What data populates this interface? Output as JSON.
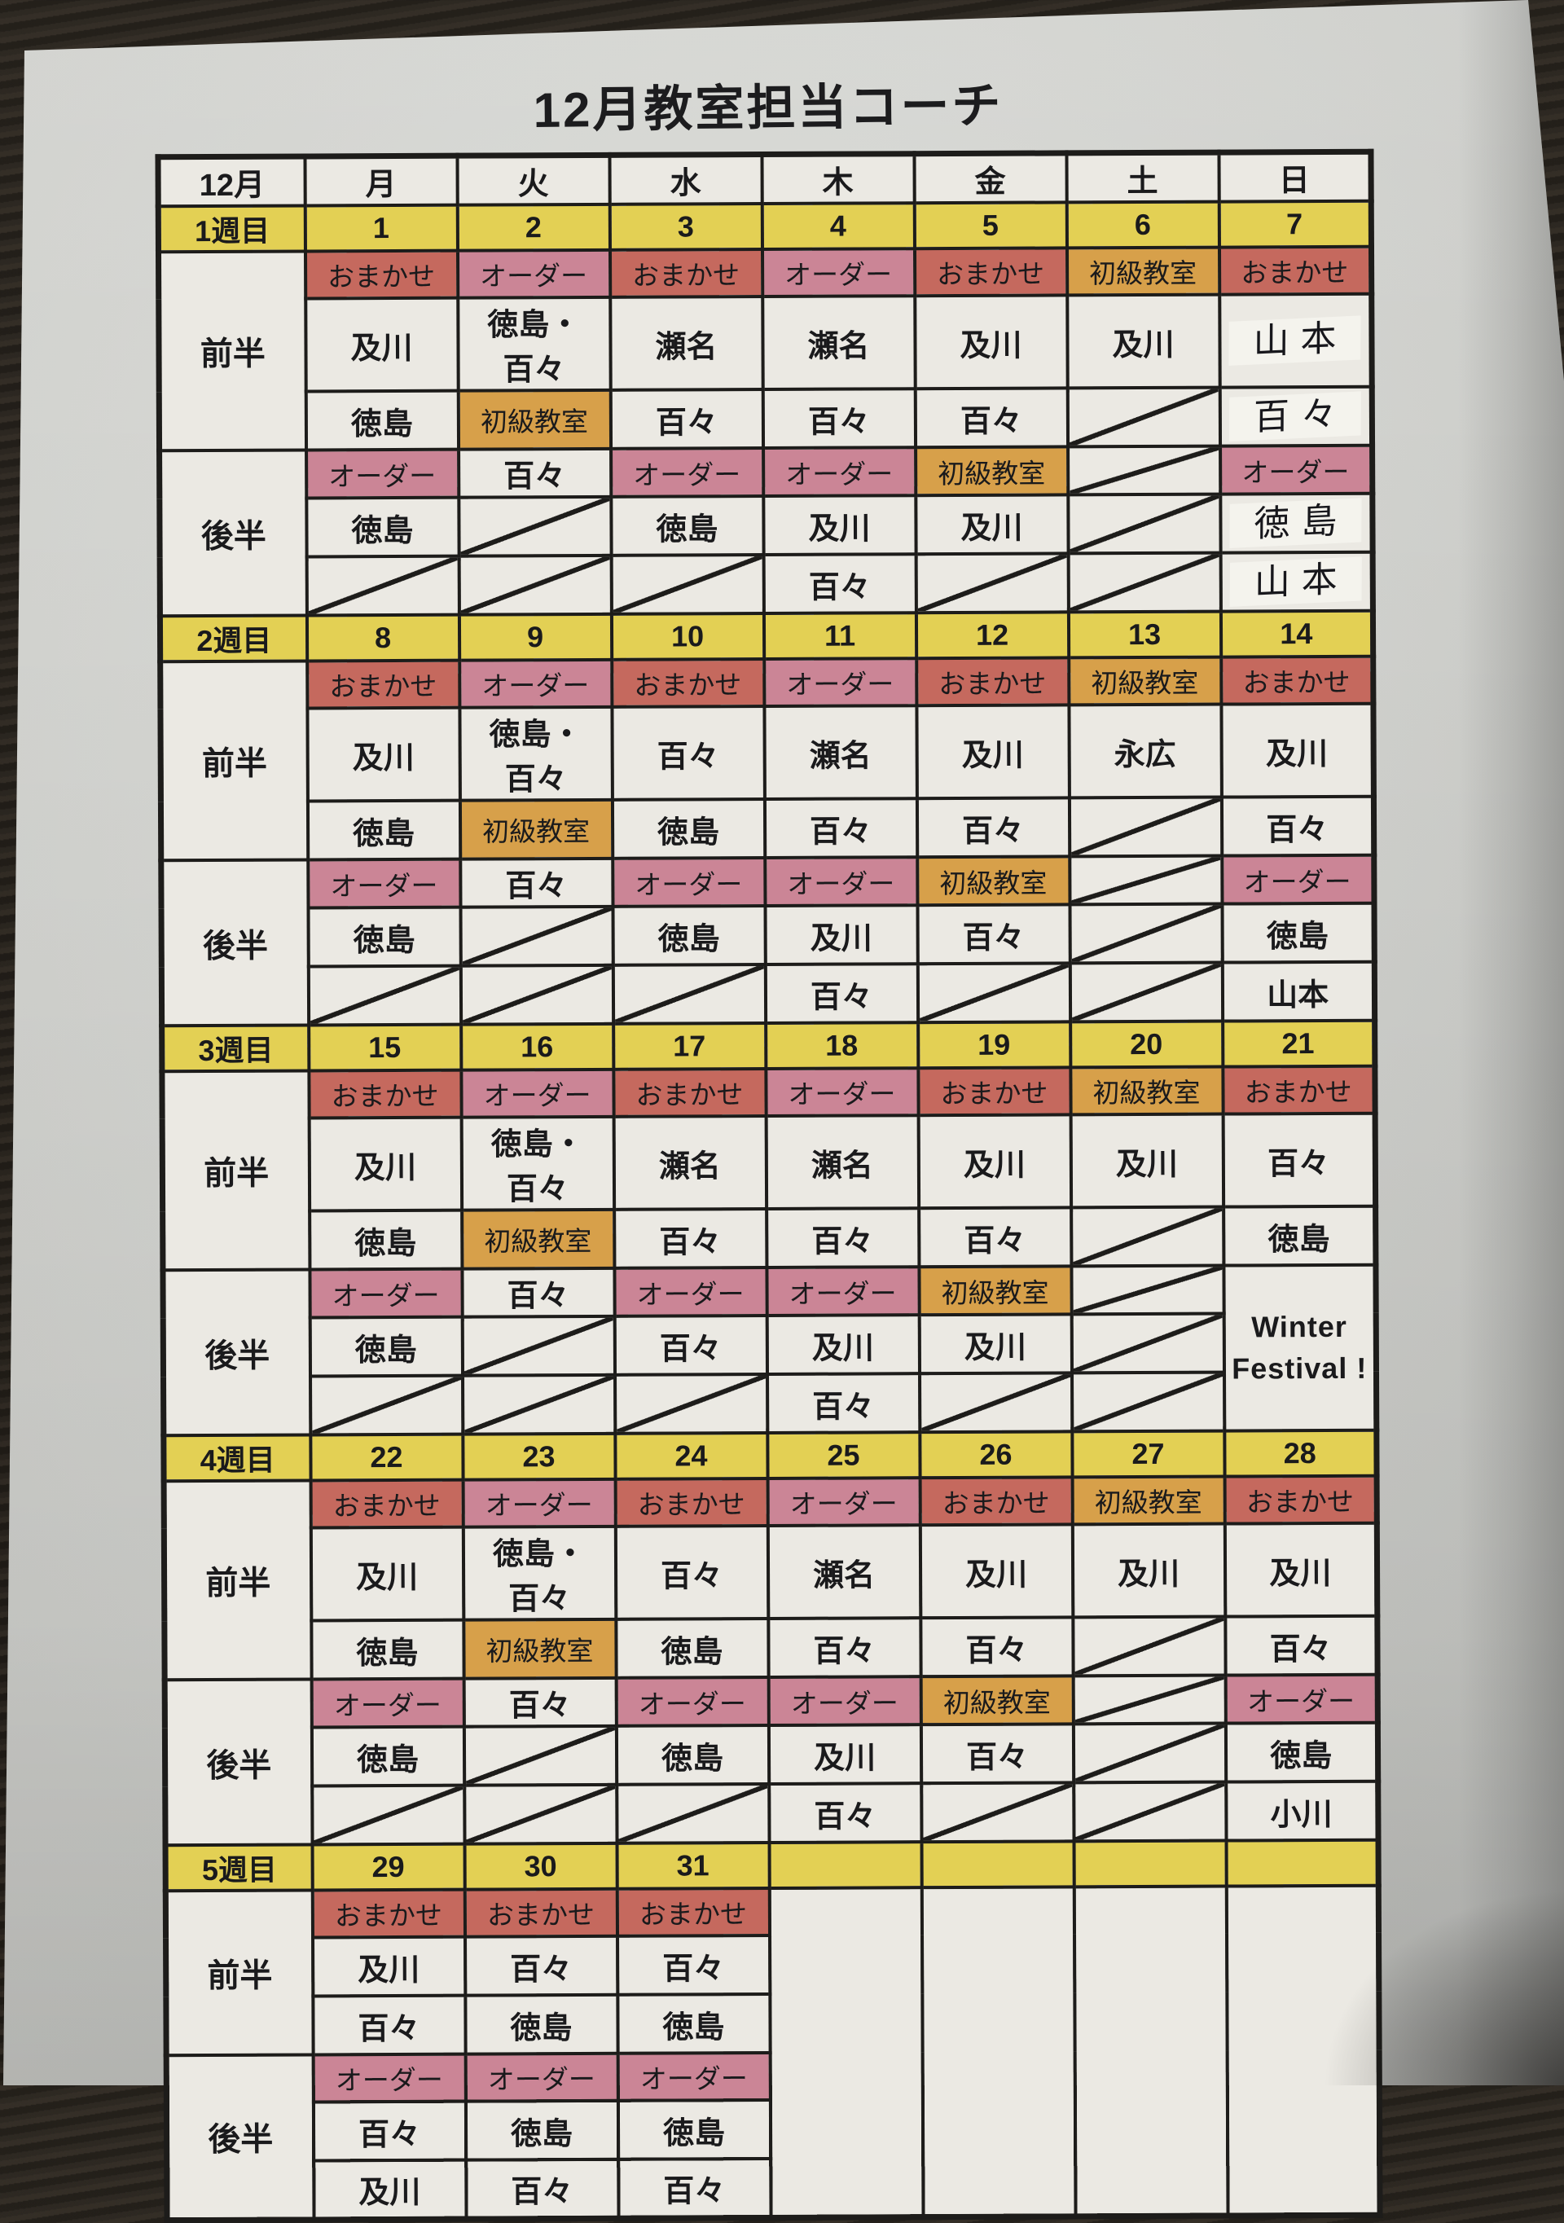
{
  "page": {
    "title": "12月教室担当コーチ"
  },
  "colors": {
    "omakase_bg": "#c5695e",
    "order_bg": "#cb8596",
    "beginner_bg": "#d7a04a",
    "week_row_bg": "#e3d054",
    "cell_bg": "#ebe9e3",
    "grid_border": "#1d1c1a",
    "winter_text": "#c04a42",
    "paper": "#d9dad6"
  },
  "table": {
    "month_label": "12月",
    "day_headers": [
      "月",
      "火",
      "水",
      "木",
      "金",
      "土",
      "日"
    ],
    "half_labels": {
      "first": "前半",
      "second": "後半"
    },
    "weeks": [
      {
        "label": "1週目",
        "dates": [
          "1",
          "2",
          "3",
          "4",
          "5",
          "6",
          "7"
        ],
        "first": {
          "slots": [
            {
              "t": "おまかせ",
              "y": "omakase"
            },
            {
              "t": "オーダー",
              "y": "order"
            },
            {
              "t": "おまかせ",
              "y": "omakase"
            },
            {
              "t": "オーダー",
              "y": "order"
            },
            {
              "t": "おまかせ",
              "y": "omakase"
            },
            {
              "t": "初級教室",
              "y": "beginner"
            },
            {
              "t": "おまかせ",
              "y": "omakase"
            }
          ],
          "rows": [
            [
              {
                "t": "及川",
                "y": "plain"
              },
              {
                "t": "徳島・百々",
                "y": "plain"
              },
              {
                "t": "瀬名",
                "y": "plain"
              },
              {
                "t": "瀬名",
                "y": "plain"
              },
              {
                "t": "及川",
                "y": "plain"
              },
              {
                "t": "及川",
                "y": "plain"
              },
              {
                "t": "山本",
                "y": "hand"
              }
            ],
            [
              {
                "t": "徳島",
                "y": "plain"
              },
              {
                "t": "初級教室",
                "y": "beginner"
              },
              {
                "t": "百々",
                "y": "plain"
              },
              {
                "t": "百々",
                "y": "plain"
              },
              {
                "t": "百々",
                "y": "plain"
              },
              {
                "y": "slash"
              },
              {
                "t": "百々",
                "y": "hand"
              }
            ]
          ]
        },
        "second": {
          "slots": [
            {
              "t": "オーダー",
              "y": "order"
            },
            {
              "t": "百々",
              "y": "plain"
            },
            {
              "t": "オーダー",
              "y": "order"
            },
            {
              "t": "オーダー",
              "y": "order"
            },
            {
              "t": "初級教室",
              "y": "beginner"
            },
            {
              "y": "slash"
            },
            {
              "t": "オーダー",
              "y": "order"
            }
          ],
          "rows": [
            [
              {
                "t": "徳島",
                "y": "plain"
              },
              {
                "y": "slash"
              },
              {
                "t": "徳島",
                "y": "plain"
              },
              {
                "t": "及川",
                "y": "plain"
              },
              {
                "t": "及川",
                "y": "plain"
              },
              {
                "y": "slash"
              },
              {
                "t": "徳島",
                "y": "hand"
              }
            ],
            [
              {
                "y": "slash"
              },
              {
                "y": "slash"
              },
              {
                "y": "slash"
              },
              {
                "t": "百々",
                "y": "plain"
              },
              {
                "y": "slash"
              },
              {
                "y": "slash"
              },
              {
                "t": "山本",
                "y": "hand"
              }
            ]
          ]
        }
      },
      {
        "label": "2週目",
        "dates": [
          "8",
          "9",
          "10",
          "11",
          "12",
          "13",
          "14"
        ],
        "first": {
          "slots": [
            {
              "t": "おまかせ",
              "y": "omakase"
            },
            {
              "t": "オーダー",
              "y": "order"
            },
            {
              "t": "おまかせ",
              "y": "omakase"
            },
            {
              "t": "オーダー",
              "y": "order"
            },
            {
              "t": "おまかせ",
              "y": "omakase"
            },
            {
              "t": "初級教室",
              "y": "beginner"
            },
            {
              "t": "おまかせ",
              "y": "omakase"
            }
          ],
          "rows": [
            [
              {
                "t": "及川",
                "y": "plain"
              },
              {
                "t": "徳島・百々",
                "y": "plain"
              },
              {
                "t": "百々",
                "y": "plain"
              },
              {
                "t": "瀬名",
                "y": "plain"
              },
              {
                "t": "及川",
                "y": "plain"
              },
              {
                "t": "永広",
                "y": "plain"
              },
              {
                "t": "及川",
                "y": "plain"
              }
            ],
            [
              {
                "t": "徳島",
                "y": "plain"
              },
              {
                "t": "初級教室",
                "y": "beginner"
              },
              {
                "t": "徳島",
                "y": "plain"
              },
              {
                "t": "百々",
                "y": "plain"
              },
              {
                "t": "百々",
                "y": "plain"
              },
              {
                "y": "slash"
              },
              {
                "t": "百々",
                "y": "plain"
              }
            ]
          ]
        },
        "second": {
          "slots": [
            {
              "t": "オーダー",
              "y": "order"
            },
            {
              "t": "百々",
              "y": "plain"
            },
            {
              "t": "オーダー",
              "y": "order"
            },
            {
              "t": "オーダー",
              "y": "order"
            },
            {
              "t": "初級教室",
              "y": "beginner"
            },
            {
              "y": "slash"
            },
            {
              "t": "オーダー",
              "y": "order"
            }
          ],
          "rows": [
            [
              {
                "t": "徳島",
                "y": "plain"
              },
              {
                "y": "slash"
              },
              {
                "t": "徳島",
                "y": "plain"
              },
              {
                "t": "及川",
                "y": "plain"
              },
              {
                "t": "百々",
                "y": "plain"
              },
              {
                "y": "slash"
              },
              {
                "t": "徳島",
                "y": "plain"
              }
            ],
            [
              {
                "y": "slash"
              },
              {
                "y": "slash"
              },
              {
                "y": "slash"
              },
              {
                "t": "百々",
                "y": "plain"
              },
              {
                "y": "slash"
              },
              {
                "y": "slash"
              },
              {
                "t": "山本",
                "y": "plain"
              }
            ]
          ]
        }
      },
      {
        "label": "3週目",
        "dates": [
          "15",
          "16",
          "17",
          "18",
          "19",
          "20",
          "21"
        ],
        "first": {
          "slots": [
            {
              "t": "おまかせ",
              "y": "omakase"
            },
            {
              "t": "オーダー",
              "y": "order"
            },
            {
              "t": "おまかせ",
              "y": "omakase"
            },
            {
              "t": "オーダー",
              "y": "order"
            },
            {
              "t": "おまかせ",
              "y": "omakase"
            },
            {
              "t": "初級教室",
              "y": "beginner"
            },
            {
              "t": "おまかせ",
              "y": "omakase"
            }
          ],
          "rows": [
            [
              {
                "t": "及川",
                "y": "plain"
              },
              {
                "t": "徳島・百々",
                "y": "plain"
              },
              {
                "t": "瀬名",
                "y": "plain"
              },
              {
                "t": "瀬名",
                "y": "plain"
              },
              {
                "t": "及川",
                "y": "plain"
              },
              {
                "t": "及川",
                "y": "plain"
              },
              {
                "t": "百々",
                "y": "plain"
              }
            ],
            [
              {
                "t": "徳島",
                "y": "plain"
              },
              {
                "t": "初級教室",
                "y": "beginner"
              },
              {
                "t": "百々",
                "y": "plain"
              },
              {
                "t": "百々",
                "y": "plain"
              },
              {
                "t": "百々",
                "y": "plain"
              },
              {
                "y": "slash"
              },
              {
                "t": "徳島",
                "y": "plain"
              }
            ]
          ]
        },
        "second": {
          "slots": [
            {
              "t": "オーダー",
              "y": "order"
            },
            {
              "t": "百々",
              "y": "plain"
            },
            {
              "t": "オーダー",
              "y": "order"
            },
            {
              "t": "オーダー",
              "y": "order"
            },
            {
              "t": "初級教室",
              "y": "beginner"
            },
            {
              "y": "slash"
            },
            {
              "t": "Winter Festival !",
              "y": "winter",
              "span": 3
            }
          ],
          "rows": [
            [
              {
                "t": "徳島",
                "y": "plain"
              },
              {
                "y": "slash"
              },
              {
                "t": "百々",
                "y": "plain"
              },
              {
                "t": "及川",
                "y": "plain"
              },
              {
                "t": "及川",
                "y": "plain"
              },
              {
                "y": "slash"
              }
            ],
            [
              {
                "y": "slash"
              },
              {
                "y": "slash"
              },
              {
                "y": "slash"
              },
              {
                "t": "百々",
                "y": "plain"
              },
              {
                "y": "slash"
              },
              {
                "y": "slash"
              }
            ]
          ]
        }
      },
      {
        "label": "4週目",
        "dates": [
          "22",
          "23",
          "24",
          "25",
          "26",
          "27",
          "28"
        ],
        "first": {
          "slots": [
            {
              "t": "おまかせ",
              "y": "omakase"
            },
            {
              "t": "オーダー",
              "y": "order"
            },
            {
              "t": "おまかせ",
              "y": "omakase"
            },
            {
              "t": "オーダー",
              "y": "order"
            },
            {
              "t": "おまかせ",
              "y": "omakase"
            },
            {
              "t": "初級教室",
              "y": "beginner"
            },
            {
              "t": "おまかせ",
              "y": "omakase"
            }
          ],
          "rows": [
            [
              {
                "t": "及川",
                "y": "plain"
              },
              {
                "t": "徳島・百々",
                "y": "plain"
              },
              {
                "t": "百々",
                "y": "plain"
              },
              {
                "t": "瀬名",
                "y": "plain"
              },
              {
                "t": "及川",
                "y": "plain"
              },
              {
                "t": "及川",
                "y": "plain"
              },
              {
                "t": "及川",
                "y": "plain"
              }
            ],
            [
              {
                "t": "徳島",
                "y": "plain"
              },
              {
                "t": "初級教室",
                "y": "beginner"
              },
              {
                "t": "徳島",
                "y": "plain"
              },
              {
                "t": "百々",
                "y": "plain"
              },
              {
                "t": "百々",
                "y": "plain"
              },
              {
                "y": "slash"
              },
              {
                "t": "百々",
                "y": "plain"
              }
            ]
          ]
        },
        "second": {
          "slots": [
            {
              "t": "オーダー",
              "y": "order"
            },
            {
              "t": "百々",
              "y": "plain"
            },
            {
              "t": "オーダー",
              "y": "order"
            },
            {
              "t": "オーダー",
              "y": "order"
            },
            {
              "t": "初級教室",
              "y": "beginner"
            },
            {
              "y": "slash"
            },
            {
              "t": "オーダー",
              "y": "order"
            }
          ],
          "rows": [
            [
              {
                "t": "徳島",
                "y": "plain"
              },
              {
                "y": "slash"
              },
              {
                "t": "徳島",
                "y": "plain"
              },
              {
                "t": "及川",
                "y": "plain"
              },
              {
                "t": "百々",
                "y": "plain"
              },
              {
                "y": "slash"
              },
              {
                "t": "徳島",
                "y": "plain"
              }
            ],
            [
              {
                "y": "slash"
              },
              {
                "y": "slash"
              },
              {
                "y": "slash"
              },
              {
                "t": "百々",
                "y": "plain"
              },
              {
                "y": "slash"
              },
              {
                "y": "slash"
              },
              {
                "t": "小川",
                "y": "plain"
              }
            ]
          ]
        }
      },
      {
        "label": "5週目",
        "dates": [
          "29",
          "30",
          "31",
          "",
          "",
          "",
          ""
        ],
        "first": {
          "slots": [
            {
              "t": "おまかせ",
              "y": "omakase"
            },
            {
              "t": "おまかせ",
              "y": "omakase"
            },
            {
              "t": "おまかせ",
              "y": "omakase"
            },
            {
              "y": "empty",
              "span": 6
            },
            {
              "y": "empty",
              "span": 6
            },
            {
              "y": "empty",
              "span": 6
            },
            {
              "y": "empty",
              "span": 6
            }
          ],
          "rows": [
            [
              {
                "t": "及川",
                "y": "plain"
              },
              {
                "t": "百々",
                "y": "plain"
              },
              {
                "t": "百々",
                "y": "plain"
              }
            ],
            [
              {
                "t": "百々",
                "y": "plain"
              },
              {
                "t": "徳島",
                "y": "plain"
              },
              {
                "t": "徳島",
                "y": "plain"
              }
            ]
          ]
        },
        "second": {
          "slots": [
            {
              "t": "オーダー",
              "y": "order"
            },
            {
              "t": "オーダー",
              "y": "order"
            },
            {
              "t": "オーダー",
              "y": "order"
            }
          ],
          "rows": [
            [
              {
                "t": "百々",
                "y": "plain"
              },
              {
                "t": "徳島",
                "y": "plain"
              },
              {
                "t": "徳島",
                "y": "plain"
              }
            ],
            [
              {
                "t": "及川",
                "y": "plain"
              },
              {
                "t": "百々",
                "y": "plain"
              },
              {
                "t": "百々",
                "y": "plain"
              }
            ]
          ]
        }
      }
    ]
  }
}
